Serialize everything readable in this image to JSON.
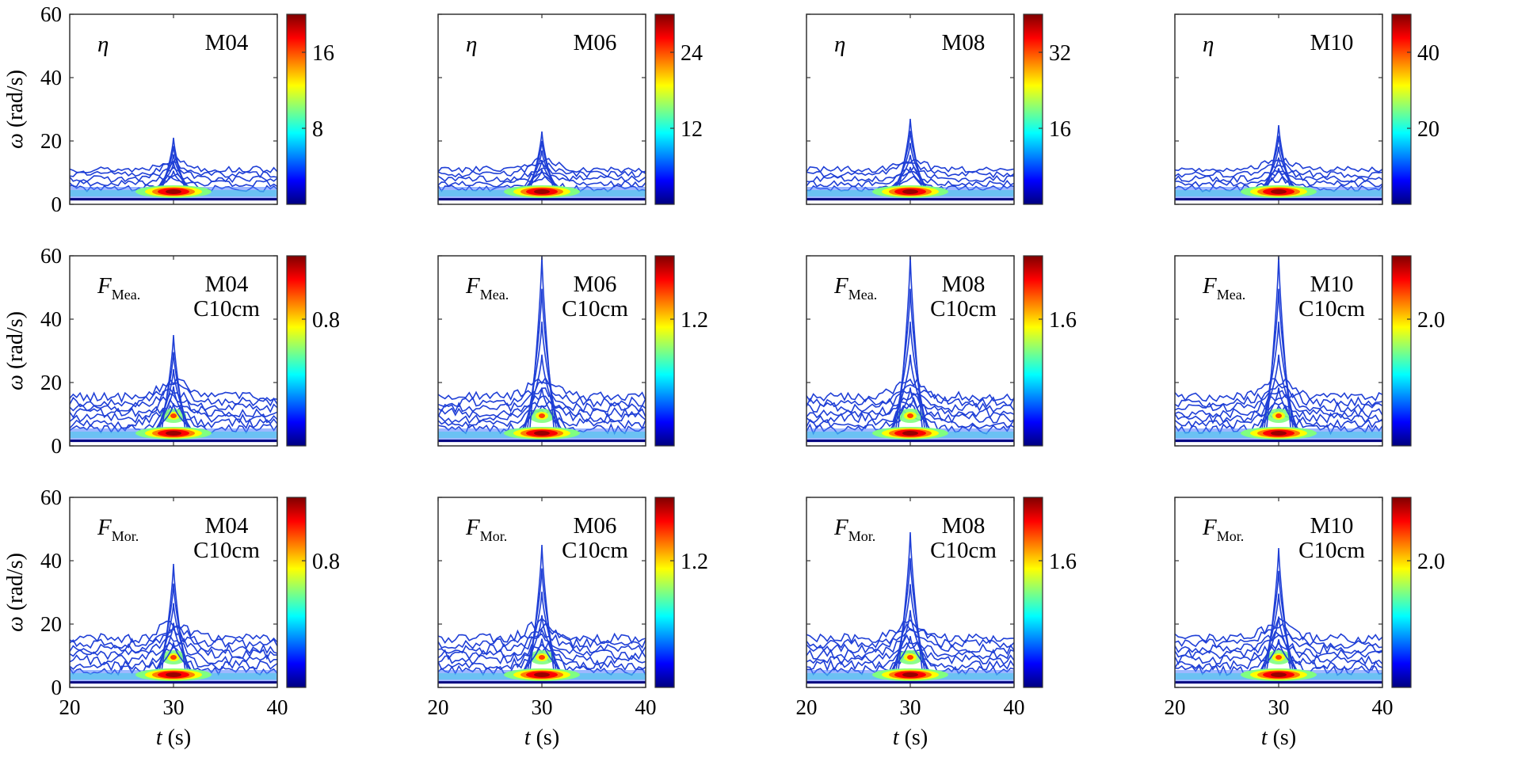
{
  "figure": {
    "ylabel": "ω (rad/s)",
    "xlabel": "t (s)"
  },
  "colormap": [
    "#00007f",
    "#0000ff",
    "#0080ff",
    "#00ffff",
    "#80ff80",
    "#ffff00",
    "#ff8000",
    "#ff0000",
    "#7f0000"
  ],
  "chart_data": [
    {
      "type": "heatmap",
      "row": 0,
      "col": 0,
      "variable": "η",
      "var_sub": "",
      "model": "M04",
      "case": "",
      "xlim": [
        20,
        40
      ],
      "ylim": [
        0,
        60
      ],
      "xticks": [
        20,
        30,
        40
      ],
      "yticks": [
        0,
        20,
        40,
        60
      ],
      "cbar_ticks": [
        8,
        16
      ],
      "cbar_max": 20,
      "peak": {
        "t": 30,
        "omega": 4
      },
      "spike_top": 21
    },
    {
      "type": "heatmap",
      "row": 0,
      "col": 1,
      "variable": "η",
      "var_sub": "",
      "model": "M06",
      "case": "",
      "xlim": [
        20,
        40
      ],
      "ylim": [
        0,
        60
      ],
      "xticks": [
        20,
        30,
        40
      ],
      "yticks": [
        0,
        20,
        40,
        60
      ],
      "cbar_ticks": [
        12,
        24
      ],
      "cbar_max": 30,
      "peak": {
        "t": 30,
        "omega": 4
      },
      "spike_top": 23
    },
    {
      "type": "heatmap",
      "row": 0,
      "col": 2,
      "variable": "η",
      "var_sub": "",
      "model": "M08",
      "case": "",
      "xlim": [
        20,
        40
      ],
      "ylim": [
        0,
        60
      ],
      "xticks": [
        20,
        30,
        40
      ],
      "yticks": [
        0,
        20,
        40,
        60
      ],
      "cbar_ticks": [
        16,
        32
      ],
      "cbar_max": 40,
      "peak": {
        "t": 30,
        "omega": 4
      },
      "spike_top": 27
    },
    {
      "type": "heatmap",
      "row": 0,
      "col": 3,
      "variable": "η",
      "var_sub": "",
      "model": "M10",
      "case": "",
      "xlim": [
        20,
        40
      ],
      "ylim": [
        0,
        60
      ],
      "xticks": [
        20,
        30,
        40
      ],
      "yticks": [
        0,
        20,
        40,
        60
      ],
      "cbar_ticks": [
        20,
        40
      ],
      "cbar_max": 50,
      "peak": {
        "t": 30,
        "omega": 4
      },
      "spike_top": 25
    },
    {
      "type": "heatmap",
      "row": 1,
      "col": 0,
      "variable": "F",
      "var_sub": "Mea.",
      "model": "M04",
      "case": "C10cm",
      "xlim": [
        20,
        40
      ],
      "ylim": [
        0,
        60
      ],
      "xticks": [
        20,
        30,
        40
      ],
      "yticks": [
        0,
        20,
        40,
        60
      ],
      "cbar_ticks": [
        0.8
      ],
      "cbar_max": 1.2,
      "peak": {
        "t": 30,
        "omega": 4
      },
      "spike_top": 35
    },
    {
      "type": "heatmap",
      "row": 1,
      "col": 1,
      "variable": "F",
      "var_sub": "Mea.",
      "model": "M06",
      "case": "C10cm",
      "xlim": [
        20,
        40
      ],
      "ylim": [
        0,
        60
      ],
      "xticks": [
        20,
        30,
        40
      ],
      "yticks": [
        0,
        20,
        40,
        60
      ],
      "cbar_ticks": [
        1.2
      ],
      "cbar_max": 1.8,
      "peak": {
        "t": 30,
        "omega": 4
      },
      "spike_top": 60
    },
    {
      "type": "heatmap",
      "row": 1,
      "col": 2,
      "variable": "F",
      "var_sub": "Mea.",
      "model": "M08",
      "case": "C10cm",
      "xlim": [
        20,
        40
      ],
      "ylim": [
        0,
        60
      ],
      "xticks": [
        20,
        30,
        40
      ],
      "yticks": [
        0,
        20,
        40,
        60
      ],
      "cbar_ticks": [
        1.6
      ],
      "cbar_max": 2.4,
      "peak": {
        "t": 30,
        "omega": 4
      },
      "spike_top": 60
    },
    {
      "type": "heatmap",
      "row": 1,
      "col": 3,
      "variable": "F",
      "var_sub": "Mea.",
      "model": "M10",
      "case": "C10cm",
      "xlim": [
        20,
        40
      ],
      "ylim": [
        0,
        60
      ],
      "xticks": [
        20,
        30,
        40
      ],
      "yticks": [
        0,
        20,
        40,
        60
      ],
      "cbar_ticks": [
        2.0
      ],
      "cbar_max": 3.0,
      "peak": {
        "t": 30,
        "omega": 4
      },
      "spike_top": 60
    },
    {
      "type": "heatmap",
      "row": 2,
      "col": 0,
      "variable": "F",
      "var_sub": "Mor.",
      "model": "M04",
      "case": "C10cm",
      "xlim": [
        20,
        40
      ],
      "ylim": [
        0,
        60
      ],
      "xticks": [
        20,
        30,
        40
      ],
      "yticks": [
        0,
        20,
        40,
        60
      ],
      "cbar_ticks": [
        0.8
      ],
      "cbar_max": 1.2,
      "peak": {
        "t": 30,
        "omega": 4
      },
      "spike_top": 39
    },
    {
      "type": "heatmap",
      "row": 2,
      "col": 1,
      "variable": "F",
      "var_sub": "Mor.",
      "model": "M06",
      "case": "C10cm",
      "xlim": [
        20,
        40
      ],
      "ylim": [
        0,
        60
      ],
      "xticks": [
        20,
        30,
        40
      ],
      "yticks": [
        0,
        20,
        40,
        60
      ],
      "cbar_ticks": [
        1.2
      ],
      "cbar_max": 1.8,
      "peak": {
        "t": 30,
        "omega": 4
      },
      "spike_top": 45
    },
    {
      "type": "heatmap",
      "row": 2,
      "col": 2,
      "variable": "F",
      "var_sub": "Mor.",
      "model": "M08",
      "case": "C10cm",
      "xlim": [
        20,
        40
      ],
      "ylim": [
        0,
        60
      ],
      "xticks": [
        20,
        30,
        40
      ],
      "yticks": [
        0,
        20,
        40,
        60
      ],
      "cbar_ticks": [
        1.6
      ],
      "cbar_max": 2.4,
      "peak": {
        "t": 30,
        "omega": 4
      },
      "spike_top": 49
    },
    {
      "type": "heatmap",
      "row": 2,
      "col": 3,
      "variable": "F",
      "var_sub": "Mor.",
      "model": "M10",
      "case": "C10cm",
      "xlim": [
        20,
        40
      ],
      "ylim": [
        0,
        60
      ],
      "xticks": [
        20,
        30,
        40
      ],
      "yticks": [
        0,
        20,
        40,
        60
      ],
      "cbar_ticks": [
        2.0
      ],
      "cbar_max": 3.0,
      "peak": {
        "t": 30,
        "omega": 4
      },
      "spike_top": 44
    }
  ]
}
